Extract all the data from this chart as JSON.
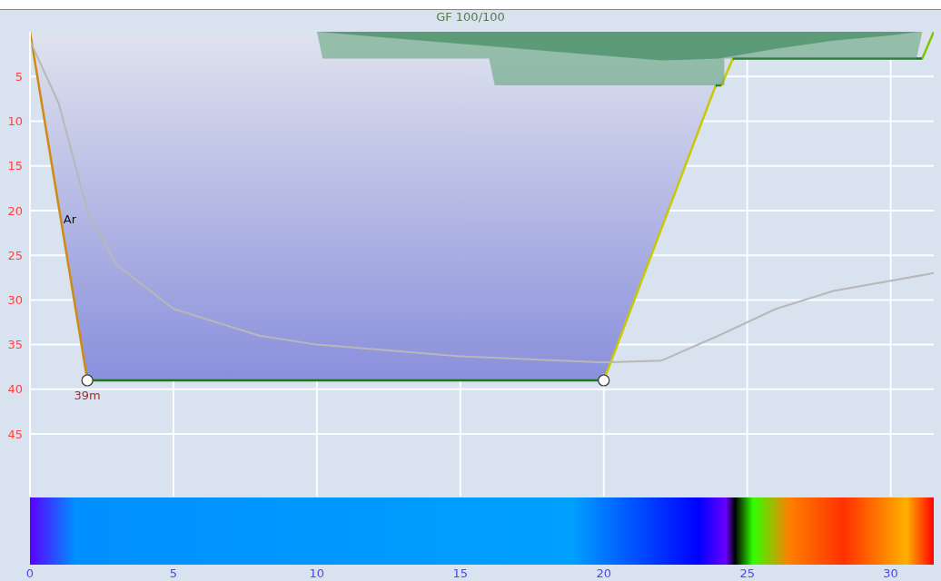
{
  "chart_data": {
    "type": "line",
    "title": "GF 100/100",
    "xlim": [
      0,
      31.5
    ],
    "xticks": [
      0,
      5,
      10,
      15,
      20,
      25,
      30
    ],
    "ylim": [
      52,
      0
    ],
    "yticks": [
      5,
      10,
      15,
      20,
      25,
      30,
      35,
      40,
      45
    ],
    "grid": true,
    "annotations": [
      {
        "text": "Ar",
        "x": 1.1,
        "y": 21
      },
      {
        "text": "39m",
        "x": 2,
        "y": 40
      }
    ],
    "series": [
      {
        "type": "area",
        "color": "#8a8fdc",
        "colors": [
          "#d08a10",
          "#1a7a1a",
          "#c8c800",
          "#1a7a1a",
          "#c8c800",
          "#1a7a1a",
          "#7ac800",
          "#7ac800"
        ],
        "x": [
          0,
          2,
          20,
          23.9,
          24.1,
          24.5,
          31.1,
          31.5
        ],
        "values": [
          0,
          39,
          39,
          6,
          6,
          3,
          3,
          0
        ]
      },
      {
        "type": "area",
        "color": "#5aa072",
        "x": [
          10,
          10.2,
          16,
          16.2,
          24.2,
          24.2,
          30.9,
          31.1
        ],
        "values": [
          0,
          3,
          3,
          6,
          6,
          3,
          3,
          0
        ]
      },
      {
        "type": "area",
        "color": "#2e7d4f",
        "x": [
          10,
          13,
          16,
          19,
          22,
          24,
          26,
          28,
          30,
          31
        ],
        "values": [
          0,
          0.8,
          1.6,
          2.4,
          3.2,
          3.0,
          1.9,
          1.0,
          0.4,
          0
        ]
      },
      {
        "color": "#b8b8b8",
        "x": [
          0,
          1,
          2,
          3,
          5,
          8,
          10,
          15,
          20,
          22,
          24,
          26,
          28,
          31.5
        ],
        "values": [
          1,
          8,
          20,
          26,
          31,
          34,
          35,
          36.3,
          37,
          36.8,
          34,
          31,
          29,
          27
        ]
      },
      {
        "type": "scatter",
        "marker": "circle",
        "color": "#ffffff",
        "x": [
          2,
          20
        ],
        "values": [
          39,
          39
        ]
      }
    ]
  }
}
